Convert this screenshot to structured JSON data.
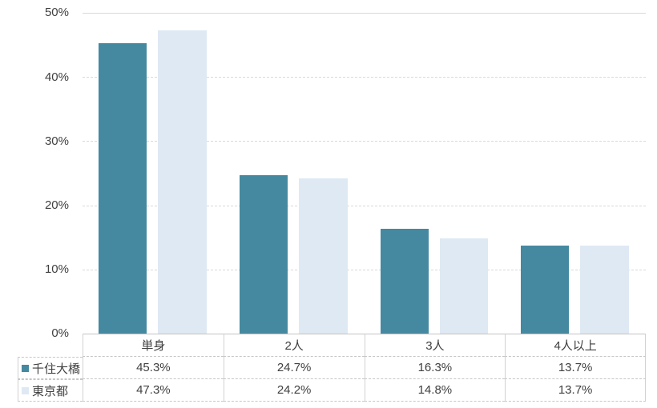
{
  "chart_data": {
    "type": "bar",
    "title": "",
    "xlabel": "",
    "ylabel": "",
    "categories": [
      "単身",
      "2人",
      "3人",
      "4人以上"
    ],
    "series": [
      {
        "name": "千住大橋",
        "color": "#4589A0",
        "values": [
          45.3,
          24.7,
          16.3,
          13.7
        ]
      },
      {
        "name": "東京都",
        "color": "#DEE9F4",
        "values": [
          47.3,
          24.2,
          14.8,
          13.7
        ]
      }
    ],
    "ylim": [
      0,
      50
    ],
    "y_ticks": [
      "50%",
      "40%",
      "30%",
      "20%",
      "10%",
      "0%"
    ],
    "grid": "horizontal, light gray dashed",
    "legend_position": "data-table-left-column",
    "value_format": "percent-1dp"
  },
  "table": {
    "rows": [
      {
        "label": "千住大橋",
        "values": [
          "45.3%",
          "24.7%",
          "16.3%",
          "13.7%"
        ]
      },
      {
        "label": "東京都",
        "values": [
          "47.3%",
          "24.2%",
          "14.8%",
          "13.7%"
        ]
      }
    ]
  },
  "colors": {
    "series_1": "#4589A0",
    "series_2": "#DEE9F4",
    "gridline": "#D9D9D9",
    "table_border": "#C6C6C6",
    "text": "#404040",
    "background": "#FFFFFF"
  }
}
